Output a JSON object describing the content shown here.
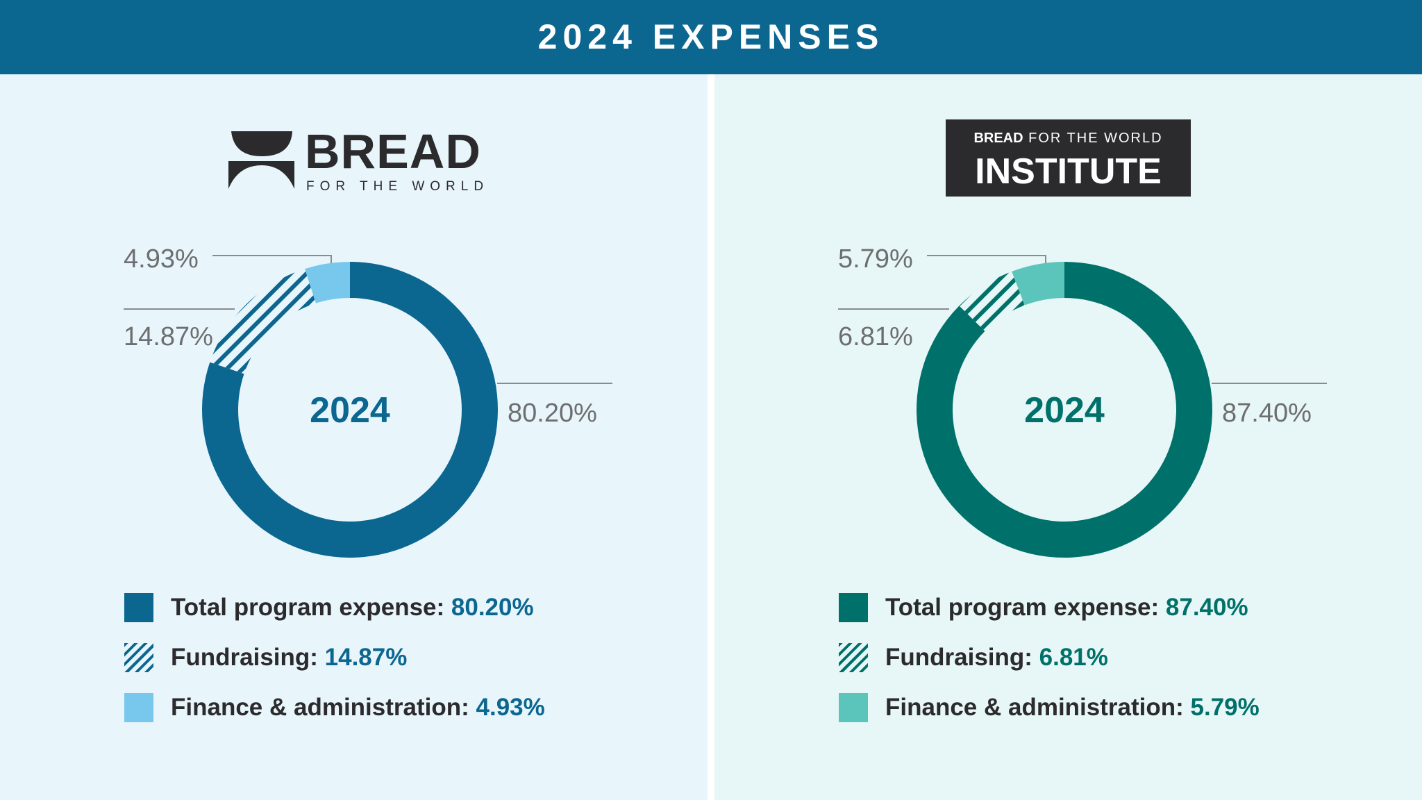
{
  "title": "2024 EXPENSES",
  "colors": {
    "header": "#0b6690",
    "left_bg": "#e8f5fb",
    "right_bg": "#e7f6f6",
    "label_gray": "#6d6e70"
  },
  "logos": {
    "left": {
      "word": "BREAD",
      "sub": "FOR THE WORLD"
    },
    "right": {
      "top_bold": "BREAD",
      "top_rest": "FOR THE WORLD",
      "main": "INSTITUTE"
    }
  },
  "chart_data": [
    {
      "type": "pie",
      "variant": "donut",
      "center_label": "2024",
      "categories": [
        "Total program expense",
        "Fundraising",
        "Finance & administration"
      ],
      "values": [
        80.2,
        14.87,
        4.93
      ],
      "labels": [
        "80.20%",
        "14.87%",
        "4.93%"
      ],
      "colors": [
        "#0b6690",
        "hatch:#0b6690",
        "#78c8ee"
      ],
      "legend": [
        {
          "label": "Total program expense:",
          "value": "80.20%"
        },
        {
          "label": "Fundraising:",
          "value": "14.87%"
        },
        {
          "label": "Finance & administration:",
          "value": "4.93%"
        }
      ],
      "accent": "#0b6690"
    },
    {
      "type": "pie",
      "variant": "donut",
      "center_label": "2024",
      "categories": [
        "Total program expense",
        "Fundraising",
        "Finance & administration"
      ],
      "values": [
        87.4,
        6.81,
        5.79
      ],
      "labels": [
        "87.40%",
        "6.81%",
        "5.79%"
      ],
      "colors": [
        "#00716a",
        "hatch:#00716a",
        "#5bc5bb"
      ],
      "legend": [
        {
          "label": "Total program expense:",
          "value": "87.40%"
        },
        {
          "label": "Fundraising:",
          "value": "6.81%"
        },
        {
          "label": "Finance & administration:",
          "value": "5.79%"
        }
      ],
      "accent": "#00716a"
    }
  ]
}
